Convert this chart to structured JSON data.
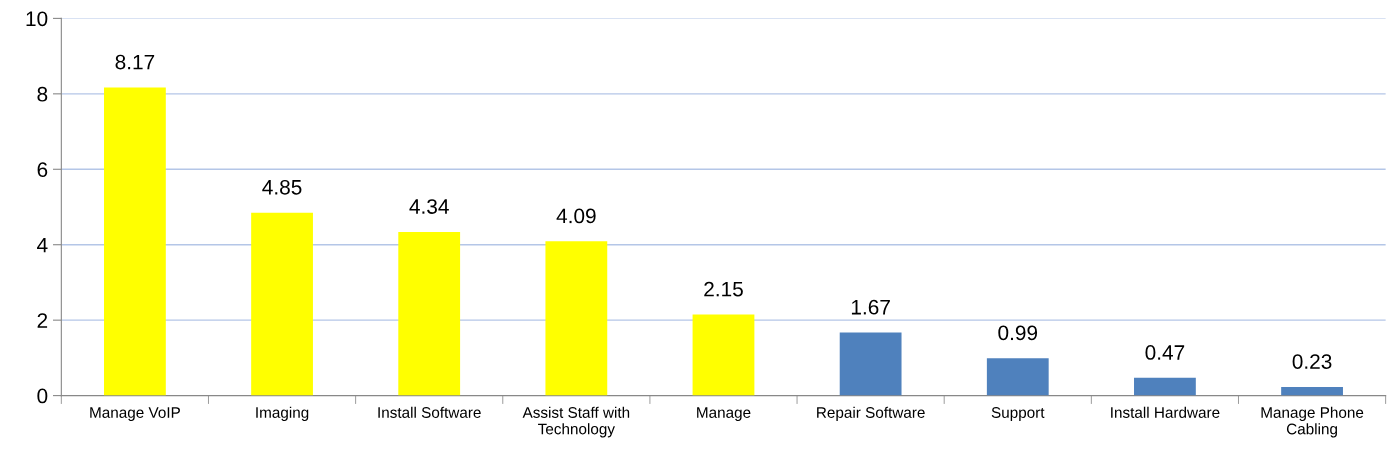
{
  "chart_data": {
    "type": "bar",
    "categories": [
      "Manage VoIP",
      "Imaging",
      "Install Software",
      "Assist Staff with Technology",
      "Manage",
      "Repair Software",
      "Support",
      "Install Hardware",
      "Manage Phone Cabling"
    ],
    "values": [
      8.17,
      4.85,
      4.34,
      4.09,
      2.15,
      1.67,
      0.99,
      0.47,
      0.23
    ],
    "colors": [
      "#ffff00",
      "#ffff00",
      "#ffff00",
      "#ffff00",
      "#ffff00",
      "#4f81bd",
      "#4f81bd",
      "#4f81bd",
      "#4f81bd"
    ],
    "ylim": [
      0,
      10
    ],
    "yticks": [
      0,
      2,
      4,
      6,
      8,
      10
    ],
    "grid": "y",
    "data_labels": true,
    "legend": false
  }
}
